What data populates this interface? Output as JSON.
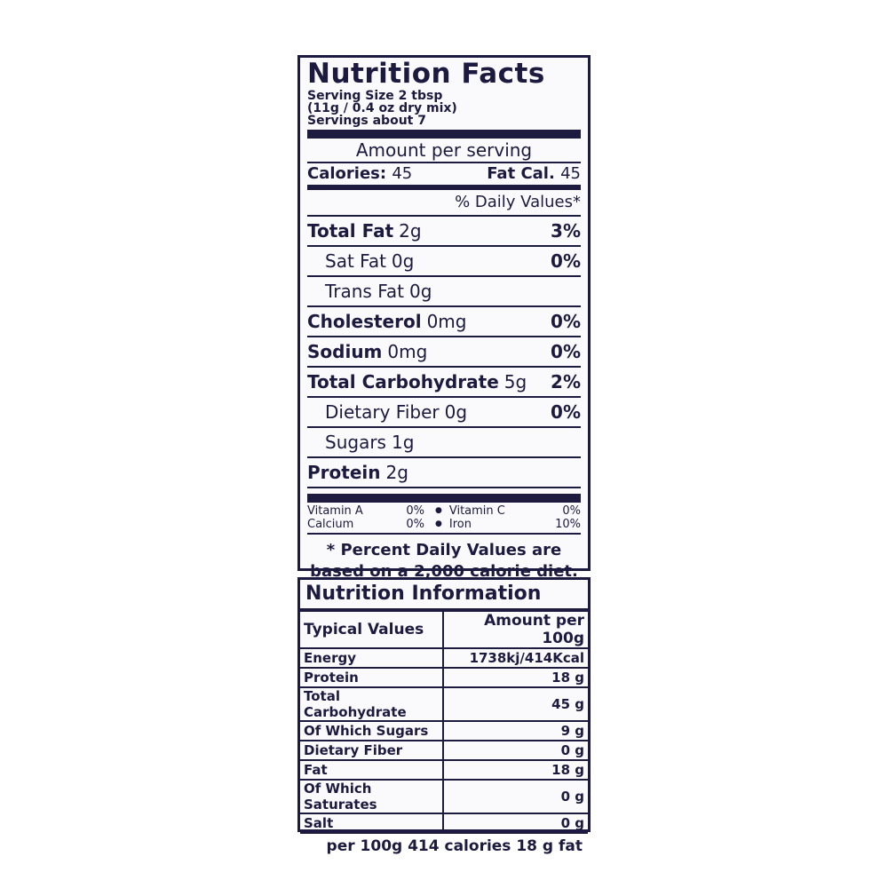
{
  "facts": {
    "title": "Nutrition Facts",
    "serving_size": "Serving Size 2 tbsp",
    "serving_detail": "(11g / 0.4 oz dry mix)",
    "servings": "Servings about 7",
    "amount_per_serving": "Amount per serving",
    "calories_label": "Calories:",
    "calories": "45",
    "fat_cal_label": "Fat Cal.",
    "fat_cal": "45",
    "daily_values_header": "% Daily Values*",
    "rows": [
      {
        "name": "Total Fat",
        "amount": "2g",
        "dv": "3%",
        "sub": [
          {
            "name": "Sat Fat",
            "amount": "0g",
            "dv": "0%"
          },
          {
            "name": "Trans Fat",
            "amount": "0g"
          }
        ]
      },
      {
        "name": "Cholesterol",
        "amount": "0mg",
        "dv": "0%"
      },
      {
        "name": "Sodium",
        "amount": "0mg",
        "dv": "0%"
      },
      {
        "name": "Total Carbohydrate",
        "amount": "5g",
        "dv": "2%",
        "sub": [
          {
            "name": "Dietary Fiber",
            "amount": "0g",
            "dv": "0%"
          },
          {
            "name": "Sugars",
            "amount": "1g"
          }
        ]
      },
      {
        "name": "Protein",
        "amount": "2g"
      }
    ],
    "vitamins": [
      {
        "name": "Vitamin A",
        "value": "0%"
      },
      {
        "name": "Vitamin C",
        "value": "0%"
      },
      {
        "name": "Calcium",
        "value": "0%"
      },
      {
        "name": "Iron",
        "value": "10%"
      }
    ],
    "footnote": [
      "* Percent Daily Values are",
      "based on a 2,000 calorie diet."
    ]
  },
  "info": {
    "title": "Nutrition Information",
    "header": [
      "Typical Values",
      "Amount per 100g"
    ],
    "rows": [
      [
        "Energy",
        "1738kj/414Kcal"
      ],
      [
        "Protein",
        "18 g"
      ],
      [
        "Total Carbohydrate",
        "45 g"
      ],
      [
        "Of Which Sugars",
        "9 g"
      ],
      [
        "Dietary Fiber",
        "0 g"
      ],
      [
        "Fat",
        "18 g"
      ],
      [
        "Of Which Saturates",
        "0 g"
      ],
      [
        "Salt",
        "0 g"
      ]
    ],
    "footer": "per 100g 414 calories 18 g fat"
  }
}
